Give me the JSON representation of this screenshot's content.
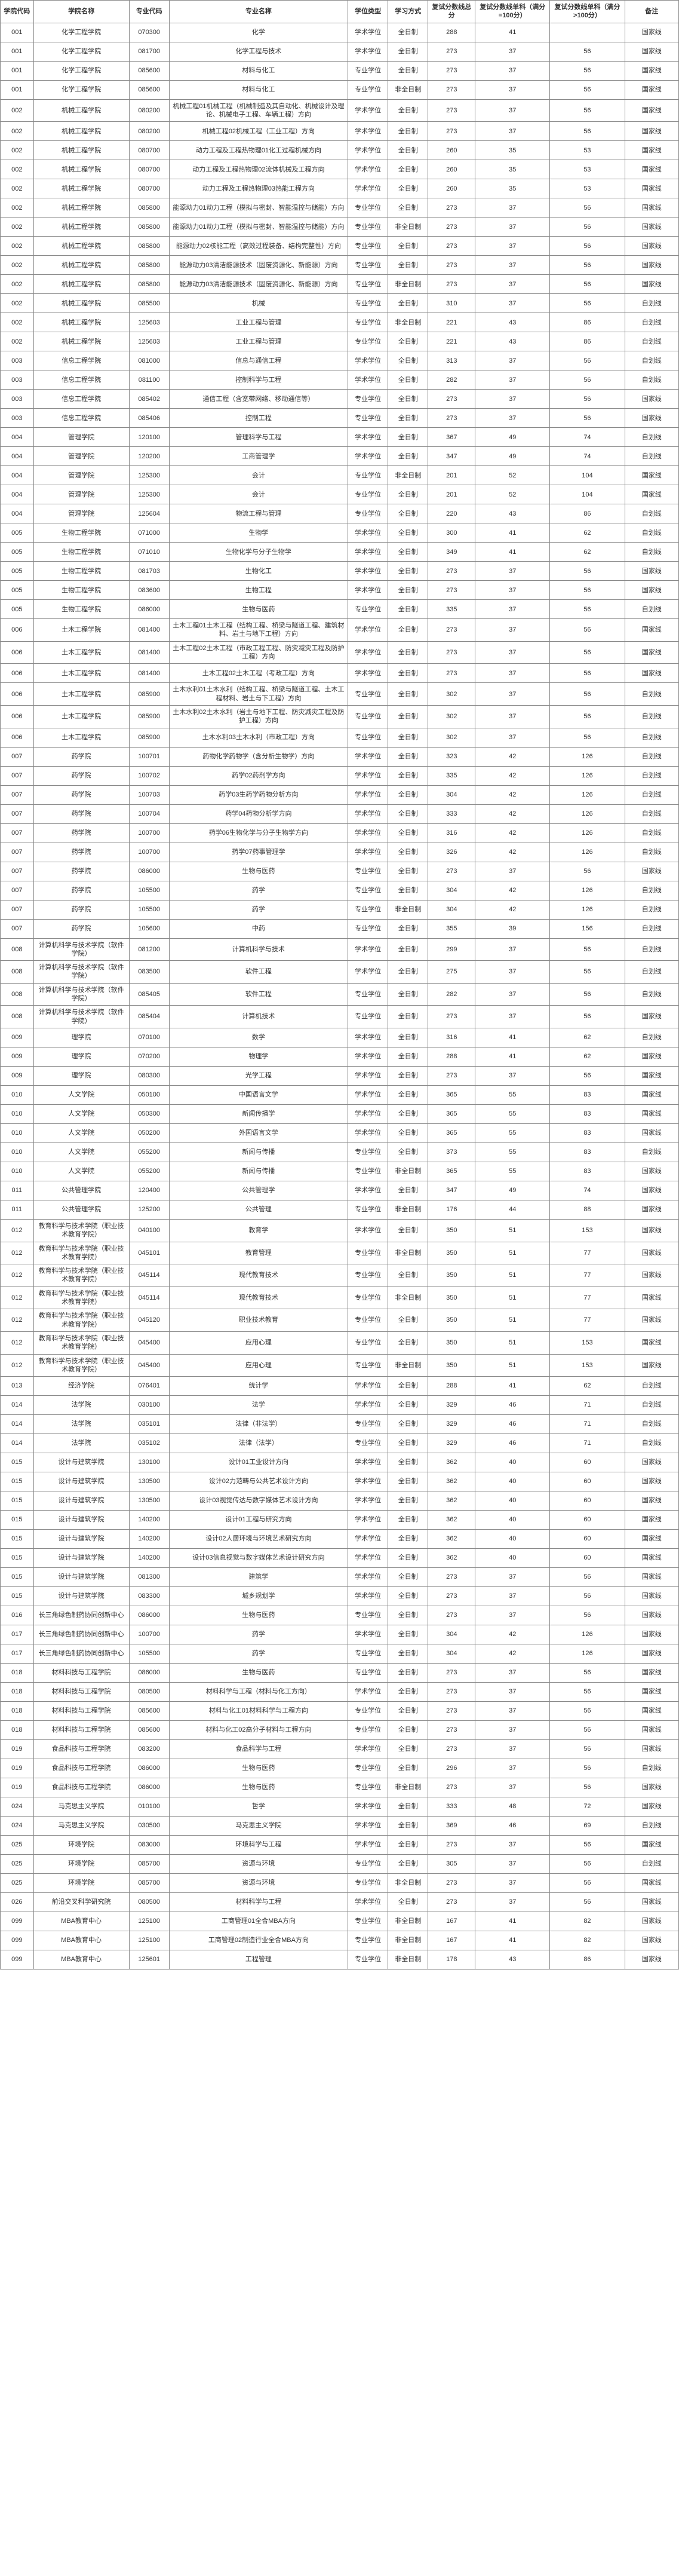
{
  "columns": [
    "学院代码",
    "学院名称",
    "专业代码",
    "专业名称",
    "学位类型",
    "学习方式",
    "复试分数线总分",
    "复试分数线单科（满分=100分）",
    "复试分数线单科（满分>100分）",
    "备注"
  ],
  "rows": [
    [
      "001",
      "化学工程学院",
      "070300",
      "化学",
      "学术学位",
      "全日制",
      "288",
      "41",
      "",
      "国家线"
    ],
    [
      "001",
      "化学工程学院",
      "081700",
      "化学工程与技术",
      "学术学位",
      "全日制",
      "273",
      "37",
      "56",
      "国家线"
    ],
    [
      "001",
      "化学工程学院",
      "085600",
      "材料与化工",
      "专业学位",
      "全日制",
      "273",
      "37",
      "56",
      "国家线"
    ],
    [
      "001",
      "化学工程学院",
      "085600",
      "材料与化工",
      "专业学位",
      "非全日制",
      "273",
      "37",
      "56",
      "国家线"
    ],
    [
      "002",
      "机械工程学院",
      "080200",
      "机械工程01机械工程（机械制造及其自动化、机械设计及理论、机械电子工程、车辆工程）方向",
      "学术学位",
      "全日制",
      "273",
      "37",
      "56",
      "国家线"
    ],
    [
      "002",
      "机械工程学院",
      "080200",
      "机械工程02机械工程（工业工程）方向",
      "学术学位",
      "全日制",
      "273",
      "37",
      "56",
      "国家线"
    ],
    [
      "002",
      "机械工程学院",
      "080700",
      "动力工程及工程热物理01化工过程机械方向",
      "学术学位",
      "全日制",
      "260",
      "35",
      "53",
      "国家线"
    ],
    [
      "002",
      "机械工程学院",
      "080700",
      "动力工程及工程热物理02流体机械及工程方向",
      "学术学位",
      "全日制",
      "260",
      "35",
      "53",
      "国家线"
    ],
    [
      "002",
      "机械工程学院",
      "080700",
      "动力工程及工程热物理03热能工程方向",
      "学术学位",
      "全日制",
      "260",
      "35",
      "53",
      "国家线"
    ],
    [
      "002",
      "机械工程学院",
      "085800",
      "能源动力01动力工程（模拟与密封、智能温控与储能）方向",
      "专业学位",
      "全日制",
      "273",
      "37",
      "56",
      "国家线"
    ],
    [
      "002",
      "机械工程学院",
      "085800",
      "能源动力01动力工程（模拟与密封、智能温控与储能）方向",
      "专业学位",
      "非全日制",
      "273",
      "37",
      "56",
      "国家线"
    ],
    [
      "002",
      "机械工程学院",
      "085800",
      "能源动力02核能工程（高效过程装备、结构完整性）方向",
      "专业学位",
      "全日制",
      "273",
      "37",
      "56",
      "国家线"
    ],
    [
      "002",
      "机械工程学院",
      "085800",
      "能源动力03清洁能源技术（固废资源化、新能源）方向",
      "专业学位",
      "全日制",
      "273",
      "37",
      "56",
      "国家线"
    ],
    [
      "002",
      "机械工程学院",
      "085800",
      "能源动力03清洁能源技术（固废资源化、新能源）方向",
      "专业学位",
      "非全日制",
      "273",
      "37",
      "56",
      "国家线"
    ],
    [
      "002",
      "机械工程学院",
      "085500",
      "机械",
      "专业学位",
      "全日制",
      "310",
      "37",
      "56",
      "自划线"
    ],
    [
      "002",
      "机械工程学院",
      "125603",
      "工业工程与管理",
      "专业学位",
      "非全日制",
      "221",
      "43",
      "86",
      "自划线"
    ],
    [
      "002",
      "机械工程学院",
      "125603",
      "工业工程与管理",
      "专业学位",
      "全日制",
      "221",
      "43",
      "86",
      "自划线"
    ],
    [
      "003",
      "信息工程学院",
      "081000",
      "信息与通信工程",
      "学术学位",
      "全日制",
      "313",
      "37",
      "56",
      "自划线"
    ],
    [
      "003",
      "信息工程学院",
      "081100",
      "控制科学与工程",
      "学术学位",
      "全日制",
      "282",
      "37",
      "56",
      "自划线"
    ],
    [
      "003",
      "信息工程学院",
      "085402",
      "通信工程（含宽带网络、移动通信等）",
      "专业学位",
      "全日制",
      "273",
      "37",
      "56",
      "国家线"
    ],
    [
      "003",
      "信息工程学院",
      "085406",
      "控制工程",
      "专业学位",
      "全日制",
      "273",
      "37",
      "56",
      "国家线"
    ],
    [
      "004",
      "管理学院",
      "120100",
      "管理科学与工程",
      "学术学位",
      "全日制",
      "367",
      "49",
      "74",
      "自划线"
    ],
    [
      "004",
      "管理学院",
      "120200",
      "工商管理学",
      "学术学位",
      "全日制",
      "347",
      "49",
      "74",
      "自划线"
    ],
    [
      "004",
      "管理学院",
      "125300",
      "会计",
      "专业学位",
      "非全日制",
      "201",
      "52",
      "104",
      "国家线"
    ],
    [
      "004",
      "管理学院",
      "125300",
      "会计",
      "专业学位",
      "全日制",
      "201",
      "52",
      "104",
      "国家线"
    ],
    [
      "004",
      "管理学院",
      "125604",
      "物流工程与管理",
      "专业学位",
      "全日制",
      "220",
      "43",
      "86",
      "自划线"
    ],
    [
      "005",
      "生物工程学院",
      "071000",
      "生物学",
      "学术学位",
      "全日制",
      "300",
      "41",
      "62",
      "自划线"
    ],
    [
      "005",
      "生物工程学院",
      "071010",
      "生物化学与分子生物学",
      "学术学位",
      "全日制",
      "349",
      "41",
      "62",
      "自划线"
    ],
    [
      "005",
      "生物工程学院",
      "081703",
      "生物化工",
      "学术学位",
      "全日制",
      "273",
      "37",
      "56",
      "国家线"
    ],
    [
      "005",
      "生物工程学院",
      "083600",
      "生物工程",
      "学术学位",
      "全日制",
      "273",
      "37",
      "56",
      "国家线"
    ],
    [
      "005",
      "生物工程学院",
      "086000",
      "生物与医药",
      "专业学位",
      "全日制",
      "335",
      "37",
      "56",
      "自划线"
    ],
    [
      "006",
      "土木工程学院",
      "081400",
      "土木工程01土木工程（结构工程、桥梁与隧道工程、建筑材料、岩土与地下工程）方向",
      "学术学位",
      "全日制",
      "273",
      "37",
      "56",
      "国家线"
    ],
    [
      "006",
      "土木工程学院",
      "081400",
      "土木工程02土木工程（市政工程工程、防灾减灾工程及防护工程）方向",
      "学术学位",
      "全日制",
      "273",
      "37",
      "56",
      "国家线"
    ],
    [
      "006",
      "土木工程学院",
      "081400",
      "土木工程02土木工程（考政工程）方向",
      "学术学位",
      "全日制",
      "273",
      "37",
      "56",
      "国家线"
    ],
    [
      "006",
      "土木工程学院",
      "085900",
      "土木水利01土木水利（结构工程、桥梁与隧道工程、土木工程材料、岩土与下工程）方向",
      "专业学位",
      "全日制",
      "302",
      "37",
      "56",
      "自划线"
    ],
    [
      "006",
      "土木工程学院",
      "085900",
      "土木水利02土木水利（岩土与地下工程、防灾减灾工程及防护工程）方向",
      "专业学位",
      "全日制",
      "302",
      "37",
      "56",
      "自划线"
    ],
    [
      "006",
      "土木工程学院",
      "085900",
      "土木水利03土木水利（市政工程）方向",
      "专业学位",
      "全日制",
      "302",
      "37",
      "56",
      "自划线"
    ],
    [
      "007",
      "药学院",
      "100701",
      "药物化学药物学（含分析生物学）方向",
      "学术学位",
      "全日制",
      "323",
      "42",
      "126",
      "自划线"
    ],
    [
      "007",
      "药学院",
      "100702",
      "药学02药剂学方向",
      "学术学位",
      "全日制",
      "335",
      "42",
      "126",
      "自划线"
    ],
    [
      "007",
      "药学院",
      "100703",
      "药学03生药学药物分析方向",
      "学术学位",
      "全日制",
      "304",
      "42",
      "126",
      "自划线"
    ],
    [
      "007",
      "药学院",
      "100704",
      "药学04药物分析学方向",
      "学术学位",
      "全日制",
      "333",
      "42",
      "126",
      "自划线"
    ],
    [
      "007",
      "药学院",
      "100700",
      "药学06生物化学与分子生物学方向",
      "学术学位",
      "全日制",
      "316",
      "42",
      "126",
      "自划线"
    ],
    [
      "007",
      "药学院",
      "100700",
      "药学07药事管理学",
      "学术学位",
      "全日制",
      "326",
      "42",
      "126",
      "自划线"
    ],
    [
      "007",
      "药学院",
      "086000",
      "生物与医药",
      "专业学位",
      "全日制",
      "273",
      "37",
      "56",
      "国家线"
    ],
    [
      "007",
      "药学院",
      "105500",
      "药学",
      "专业学位",
      "全日制",
      "304",
      "42",
      "126",
      "自划线"
    ],
    [
      "007",
      "药学院",
      "105500",
      "药学",
      "专业学位",
      "非全日制",
      "304",
      "42",
      "126",
      "自划线"
    ],
    [
      "007",
      "药学院",
      "105600",
      "中药",
      "专业学位",
      "全日制",
      "355",
      "39",
      "156",
      "自划线"
    ],
    [
      "008",
      "计算机科学与技术学院（软件学院）",
      "081200",
      "计算机科学与技术",
      "学术学位",
      "全日制",
      "299",
      "37",
      "56",
      "自划线"
    ],
    [
      "008",
      "计算机科学与技术学院（软件学院）",
      "083500",
      "软件工程",
      "学术学位",
      "全日制",
      "275",
      "37",
      "56",
      "自划线"
    ],
    [
      "008",
      "计算机科学与技术学院（软件学院）",
      "085405",
      "软件工程",
      "专业学位",
      "全日制",
      "282",
      "37",
      "56",
      "自划线"
    ],
    [
      "008",
      "计算机科学与技术学院（软件学院）",
      "085404",
      "计算机技术",
      "专业学位",
      "全日制",
      "273",
      "37",
      "56",
      "国家线"
    ],
    [
      "009",
      "理学院",
      "070100",
      "数学",
      "学术学位",
      "全日制",
      "316",
      "41",
      "62",
      "自划线"
    ],
    [
      "009",
      "理学院",
      "070200",
      "物理学",
      "学术学位",
      "全日制",
      "288",
      "41",
      "62",
      "国家线"
    ],
    [
      "009",
      "理学院",
      "080300",
      "光学工程",
      "学术学位",
      "全日制",
      "273",
      "37",
      "56",
      "国家线"
    ],
    [
      "010",
      "人文学院",
      "050100",
      "中国语言文学",
      "学术学位",
      "全日制",
      "365",
      "55",
      "83",
      "国家线"
    ],
    [
      "010",
      "人文学院",
      "050300",
      "新闻传播学",
      "学术学位",
      "全日制",
      "365",
      "55",
      "83",
      "国家线"
    ],
    [
      "010",
      "人文学院",
      "050200",
      "外国语言文学",
      "学术学位",
      "全日制",
      "365",
      "55",
      "83",
      "国家线"
    ],
    [
      "010",
      "人文学院",
      "055200",
      "新闻与传播",
      "专业学位",
      "全日制",
      "373",
      "55",
      "83",
      "自划线"
    ],
    [
      "010",
      "人文学院",
      "055200",
      "新闻与传播",
      "专业学位",
      "非全日制",
      "365",
      "55",
      "83",
      "国家线"
    ],
    [
      "011",
      "公共管理学院",
      "120400",
      "公共管理学",
      "学术学位",
      "全日制",
      "347",
      "49",
      "74",
      "国家线"
    ],
    [
      "011",
      "公共管理学院",
      "125200",
      "公共管理",
      "专业学位",
      "非全日制",
      "176",
      "44",
      "88",
      "国家线"
    ],
    [
      "012",
      "教育科学与技术学院（职业技术教育学院）",
      "040100",
      "教育学",
      "学术学位",
      "全日制",
      "350",
      "51",
      "153",
      "国家线"
    ],
    [
      "012",
      "教育科学与技术学院（职业技术教育学院）",
      "045101",
      "教育管理",
      "专业学位",
      "非全日制",
      "350",
      "51",
      "77",
      "国家线"
    ],
    [
      "012",
      "教育科学与技术学院（职业技术教育学院）",
      "045114",
      "现代教育技术",
      "专业学位",
      "全日制",
      "350",
      "51",
      "77",
      "国家线"
    ],
    [
      "012",
      "教育科学与技术学院（职业技术教育学院）",
      "045114",
      "现代教育技术",
      "专业学位",
      "非全日制",
      "350",
      "51",
      "77",
      "国家线"
    ],
    [
      "012",
      "教育科学与技术学院（职业技术教育学院）",
      "045120",
      "职业技术教育",
      "专业学位",
      "全日制",
      "350",
      "51",
      "77",
      "国家线"
    ],
    [
      "012",
      "教育科学与技术学院（职业技术教育学院）",
      "045400",
      "应用心理",
      "专业学位",
      "全日制",
      "350",
      "51",
      "153",
      "国家线"
    ],
    [
      "012",
      "教育科学与技术学院（职业技术教育学院）",
      "045400",
      "应用心理",
      "专业学位",
      "非全日制",
      "350",
      "51",
      "153",
      "国家线"
    ],
    [
      "013",
      "经济学院",
      "076401",
      "统计学",
      "学术学位",
      "全日制",
      "288",
      "41",
      "62",
      "自划线"
    ],
    [
      "014",
      "法学院",
      "030100",
      "法学",
      "学术学位",
      "全日制",
      "329",
      "46",
      "71",
      "自划线"
    ],
    [
      "014",
      "法学院",
      "035101",
      "法律（非法学）",
      "专业学位",
      "全日制",
      "329",
      "46",
      "71",
      "自划线"
    ],
    [
      "014",
      "法学院",
      "035102",
      "法律（法学）",
      "专业学位",
      "全日制",
      "329",
      "46",
      "71",
      "自划线"
    ],
    [
      "015",
      "设计与建筑学院",
      "130100",
      "设计01工业设计方向",
      "学术学位",
      "全日制",
      "362",
      "40",
      "60",
      "国家线"
    ],
    [
      "015",
      "设计与建筑学院",
      "130500",
      "设计02力范畴与公共艺术设计方向",
      "学术学位",
      "全日制",
      "362",
      "40",
      "60",
      "国家线"
    ],
    [
      "015",
      "设计与建筑学院",
      "130500",
      "设计03视觉传达与数字媒体艺术设计方向",
      "学术学位",
      "全日制",
      "362",
      "40",
      "60",
      "国家线"
    ],
    [
      "015",
      "设计与建筑学院",
      "140200",
      "设计01工程与研究方向",
      "学术学位",
      "全日制",
      "362",
      "40",
      "60",
      "国家线"
    ],
    [
      "015",
      "设计与建筑学院",
      "140200",
      "设计02人居环境与环境艺术研究方向",
      "学术学位",
      "全日制",
      "362",
      "40",
      "60",
      "国家线"
    ],
    [
      "015",
      "设计与建筑学院",
      "140200",
      "设计03信息视觉与数字媒体艺术设计研究方向",
      "学术学位",
      "全日制",
      "362",
      "40",
      "60",
      "国家线"
    ],
    [
      "015",
      "设计与建筑学院",
      "081300",
      "建筑学",
      "学术学位",
      "全日制",
      "273",
      "37",
      "56",
      "国家线"
    ],
    [
      "015",
      "设计与建筑学院",
      "083300",
      "城乡规划学",
      "学术学位",
      "全日制",
      "273",
      "37",
      "56",
      "国家线"
    ],
    [
      "016",
      "长三角绿色制药协同创新中心",
      "086000",
      "生物与医药",
      "专业学位",
      "全日制",
      "273",
      "37",
      "56",
      "国家线"
    ],
    [
      "017",
      "长三角绿色制药协同创新中心",
      "100700",
      "药学",
      "学术学位",
      "全日制",
      "304",
      "42",
      "126",
      "国家线"
    ],
    [
      "017",
      "长三角绿色制药协同创新中心",
      "105500",
      "药学",
      "专业学位",
      "全日制",
      "304",
      "42",
      "126",
      "国家线"
    ],
    [
      "018",
      "材料科技与工程学院",
      "086000",
      "生物与医药",
      "专业学位",
      "全日制",
      "273",
      "37",
      "56",
      "国家线"
    ],
    [
      "018",
      "材料科技与工程学院",
      "080500",
      "材料科学与工程（材料与化工方向）",
      "学术学位",
      "全日制",
      "273",
      "37",
      "56",
      "国家线"
    ],
    [
      "018",
      "材料科技与工程学院",
      "085600",
      "材料与化工01材料科学与工程方向",
      "专业学位",
      "全日制",
      "273",
      "37",
      "56",
      "国家线"
    ],
    [
      "018",
      "材料科技与工程学院",
      "085600",
      "材料与化工02高分子材料与工程方向",
      "专业学位",
      "全日制",
      "273",
      "37",
      "56",
      "国家线"
    ],
    [
      "019",
      "食品科技与工程学院",
      "083200",
      "食品科学与工程",
      "学术学位",
      "全日制",
      "273",
      "37",
      "56",
      "国家线"
    ],
    [
      "019",
      "食品科技与工程学院",
      "086000",
      "生物与医药",
      "专业学位",
      "全日制",
      "296",
      "37",
      "56",
      "自划线"
    ],
    [
      "019",
      "食品科技与工程学院",
      "086000",
      "生物与医药",
      "专业学位",
      "非全日制",
      "273",
      "37",
      "56",
      "国家线"
    ],
    [
      "024",
      "马克思主义学院",
      "010100",
      "哲学",
      "学术学位",
      "全日制",
      "333",
      "48",
      "72",
      "国家线"
    ],
    [
      "024",
      "马克思主义学院",
      "030500",
      "马克思主义学院",
      "学术学位",
      "全日制",
      "369",
      "46",
      "69",
      "自划线"
    ],
    [
      "025",
      "环境学院",
      "083000",
      "环境科学与工程",
      "学术学位",
      "全日制",
      "273",
      "37",
      "56",
      "国家线"
    ],
    [
      "025",
      "环境学院",
      "085700",
      "资源与环境",
      "专业学位",
      "全日制",
      "305",
      "37",
      "56",
      "自划线"
    ],
    [
      "025",
      "环境学院",
      "085700",
      "资源与环境",
      "专业学位",
      "非全日制",
      "273",
      "37",
      "56",
      "国家线"
    ],
    [
      "026",
      "前沿交叉科学研究院",
      "080500",
      "材料科学与工程",
      "学术学位",
      "全日制",
      "273",
      "37",
      "56",
      "国家线"
    ],
    [
      "099",
      "MBA教育中心",
      "125100",
      "工商管理01全合MBA方向",
      "专业学位",
      "非全日制",
      "167",
      "41",
      "82",
      "国家线"
    ],
    [
      "099",
      "MBA教育中心",
      "125100",
      "工商管理02制造行业全合MBA方向",
      "专业学位",
      "非全日制",
      "167",
      "41",
      "82",
      "国家线"
    ],
    [
      "099",
      "MBA教育中心",
      "125601",
      "工程管理",
      "专业学位",
      "非全日制",
      "178",
      "43",
      "86",
      "国家线"
    ]
  ],
  "col_classes": [
    "col-code",
    "col-inst",
    "col-majcode",
    "col-majname",
    "col-degtype",
    "col-study",
    "col-total",
    "col-s1",
    "col-s2",
    "col-note"
  ]
}
